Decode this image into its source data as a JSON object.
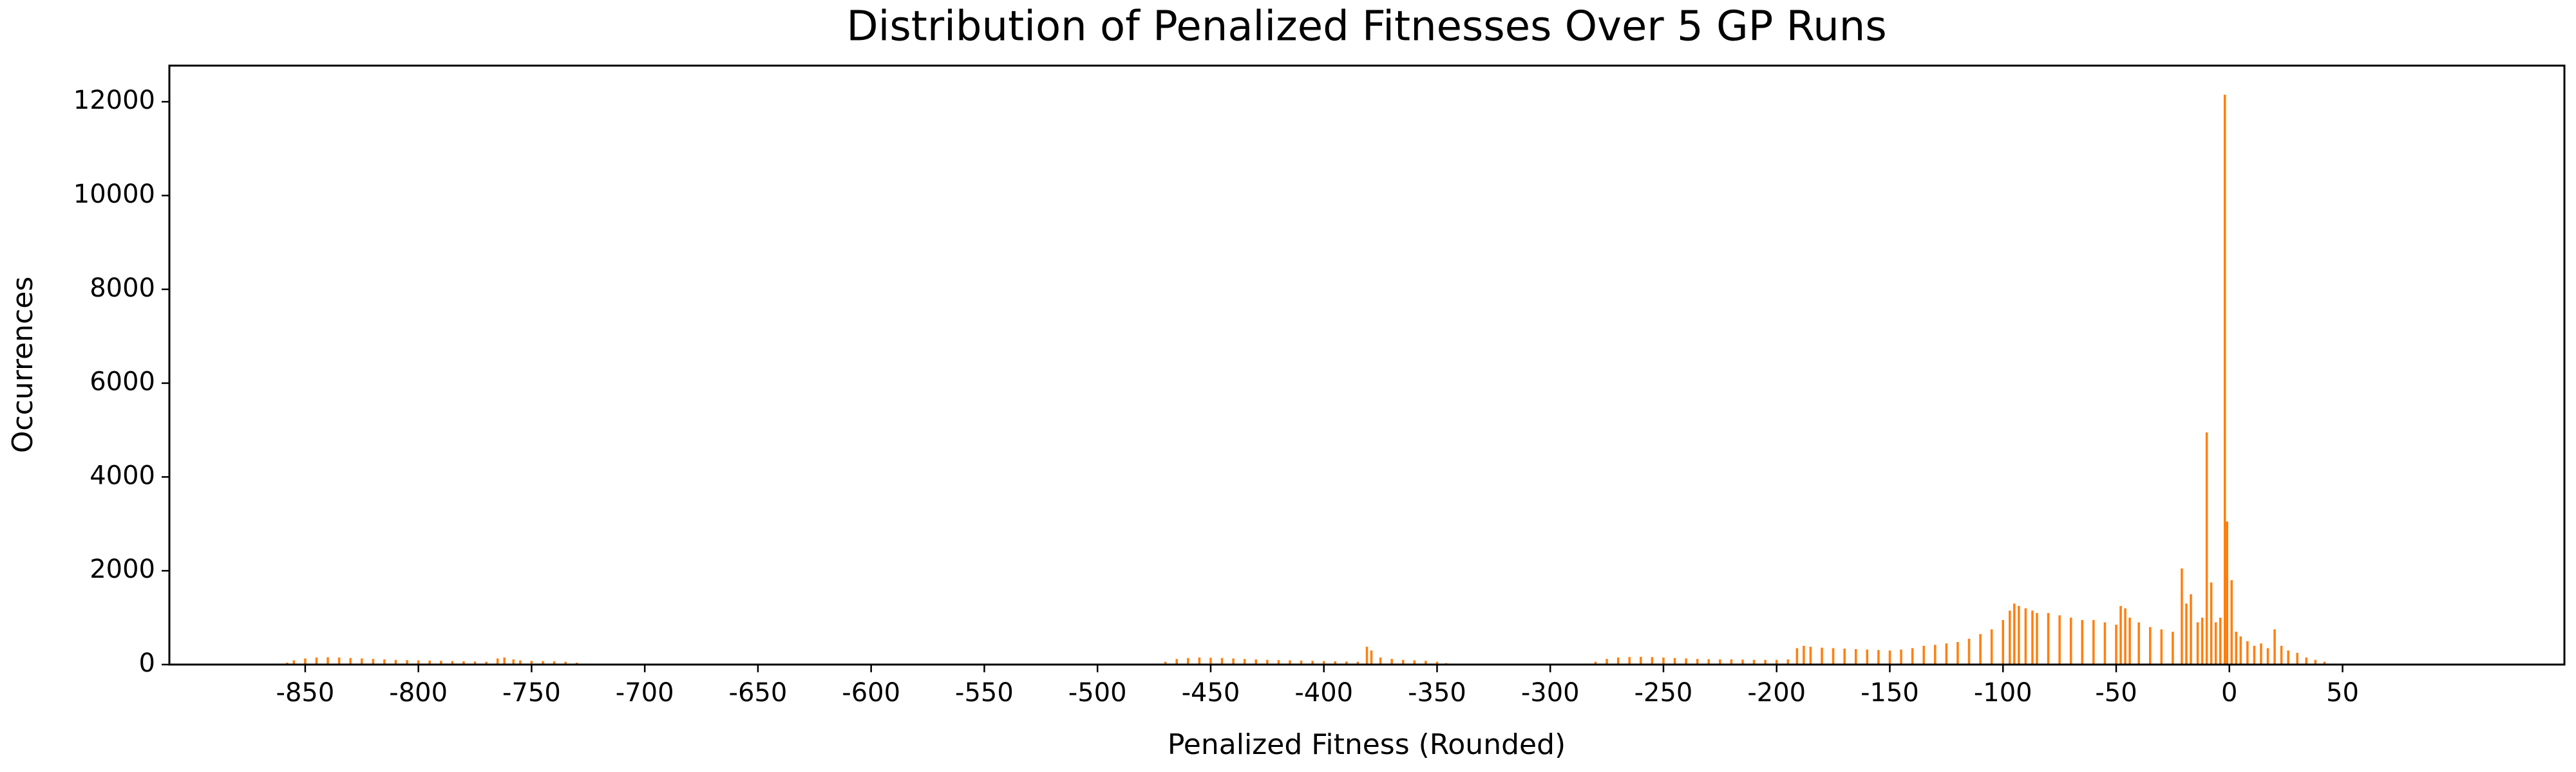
{
  "chart_data": {
    "type": "bar",
    "title": "Distribution of Penalized Fitnesses Over 5 GP Runs",
    "x_label": "Penalized Fitness (Rounded)",
    "y_label": "Occurrences",
    "color": "#ff7f0e",
    "x": [
      -858,
      -855,
      -850,
      -845,
      -840,
      -835,
      -830,
      -825,
      -820,
      -815,
      -810,
      -805,
      -800,
      -795,
      -790,
      -785,
      -780,
      -775,
      -770,
      -765,
      -762,
      -758,
      -755,
      -750,
      -745,
      -740,
      -735,
      -730,
      -470,
      -465,
      -460,
      -455,
      -450,
      -445,
      -440,
      -435,
      -430,
      -425,
      -420,
      -415,
      -410,
      -405,
      -400,
      -395,
      -390,
      -385,
      -381,
      -379,
      -375,
      -370,
      -365,
      -360,
      -355,
      -350,
      -346,
      -280,
      -275,
      -270,
      -265,
      -260,
      -255,
      -250,
      -245,
      -240,
      -235,
      -230,
      -225,
      -220,
      -215,
      -210,
      -205,
      -200,
      -195,
      -191,
      -188,
      -185,
      -180,
      -175,
      -170,
      -165,
      -160,
      -155,
      -150,
      -145,
      -140,
      -135,
      -130,
      -125,
      -120,
      -115,
      -110,
      -105,
      -100,
      -97,
      -95,
      -93,
      -90,
      -87,
      -85,
      -80,
      -75,
      -70,
      -65,
      -60,
      -55,
      -50,
      -48,
      -46,
      -44,
      -40,
      -35,
      -30,
      -25,
      -21,
      -19,
      -17,
      -14,
      -12,
      -10,
      -8,
      -6,
      -4,
      -2,
      -1,
      1,
      3,
      5,
      8,
      11,
      14,
      17,
      20,
      23,
      26,
      30,
      34,
      38,
      42,
      46
    ],
    "values": [
      40,
      90,
      130,
      150,
      155,
      150,
      140,
      130,
      120,
      110,
      100,
      95,
      90,
      85,
      80,
      75,
      70,
      65,
      60,
      130,
      150,
      110,
      90,
      80,
      75,
      70,
      60,
      40,
      60,
      120,
      140,
      150,
      145,
      140,
      130,
      120,
      110,
      100,
      95,
      90,
      85,
      80,
      75,
      70,
      65,
      60,
      380,
      300,
      150,
      120,
      100,
      90,
      80,
      60,
      30,
      60,
      120,
      150,
      160,
      165,
      160,
      150,
      140,
      130,
      120,
      115,
      110,
      110,
      105,
      100,
      100,
      100,
      110,
      350,
      400,
      380,
      360,
      350,
      340,
      330,
      320,
      310,
      300,
      320,
      350,
      400,
      420,
      450,
      480,
      550,
      650,
      750,
      950,
      1150,
      1300,
      1250,
      1200,
      1150,
      1100,
      1100,
      1050,
      1000,
      950,
      950,
      900,
      850,
      1250,
      1200,
      1000,
      900,
      800,
      750,
      700,
      2050,
      1300,
      1500,
      900,
      1000,
      4950,
      1750,
      900,
      1000,
      12150,
      3050,
      1800,
      700,
      600,
      500,
      400,
      450,
      350,
      750,
      400,
      300,
      250,
      150,
      100,
      60,
      20
    ],
    "xlim": [
      -910,
      148
    ],
    "ylim": [
      0,
      12770
    ],
    "xticks": [
      -850,
      -800,
      -750,
      -700,
      -650,
      -600,
      -550,
      -500,
      -450,
      -400,
      -350,
      -300,
      -250,
      -200,
      -150,
      -100,
      -50,
      0,
      50
    ],
    "yticks": [
      0,
      2000,
      4000,
      6000,
      8000,
      10000,
      12000
    ]
  }
}
